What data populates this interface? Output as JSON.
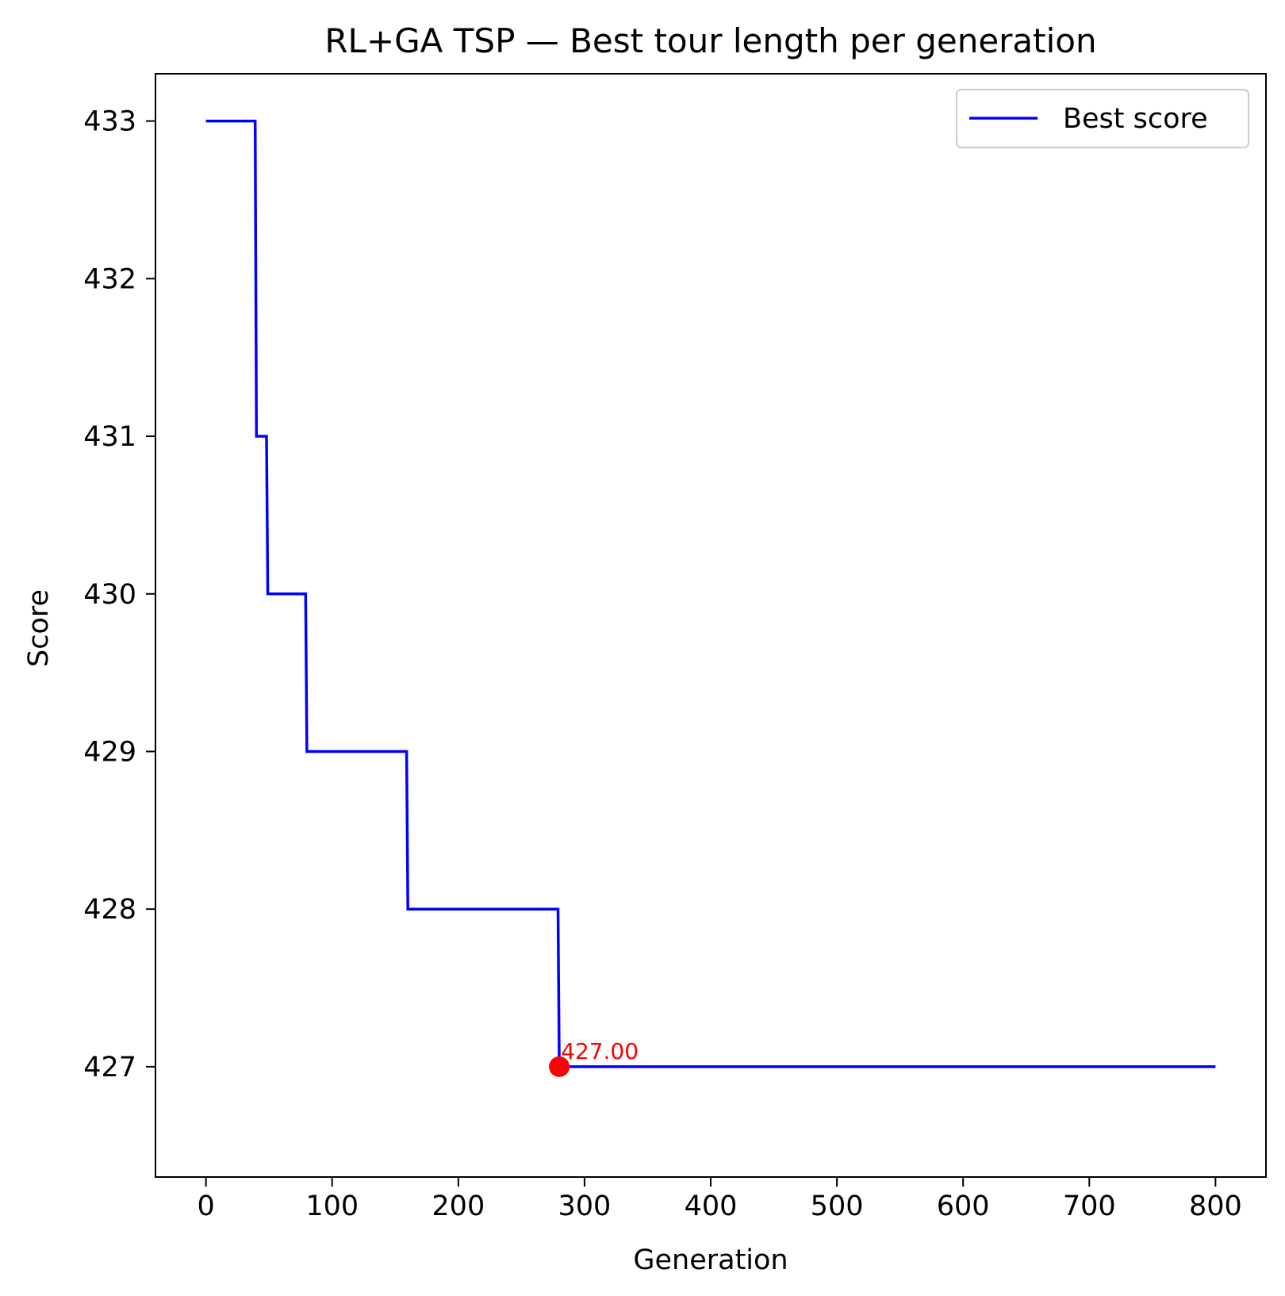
{
  "chart_data": {
    "type": "line",
    "title": "RL+GA TSP — Best tour length per generation",
    "xlabel": "Generation",
    "ylabel": "Score",
    "xlim": [
      -40,
      840
    ],
    "ylim": [
      426.3,
      433.3
    ],
    "xticks": [
      0,
      100,
      200,
      300,
      400,
      500,
      600,
      700,
      800
    ],
    "yticks": [
      427,
      428,
      429,
      430,
      431,
      432,
      433
    ],
    "grid": false,
    "legend": {
      "position": "top-right"
    },
    "series": [
      {
        "name": "Best score",
        "color": "#0000ff",
        "points": [
          [
            0,
            433
          ],
          [
            39,
            433
          ],
          [
            40,
            431
          ],
          [
            48,
            431
          ],
          [
            49,
            430
          ],
          [
            79,
            430
          ],
          [
            80,
            429
          ],
          [
            159,
            429
          ],
          [
            160,
            428
          ],
          [
            279,
            428
          ],
          [
            280,
            427
          ],
          [
            800,
            427
          ]
        ]
      }
    ],
    "highlight": {
      "x": 280,
      "y": 427,
      "label": "427.00",
      "color": "#ff0000"
    }
  }
}
